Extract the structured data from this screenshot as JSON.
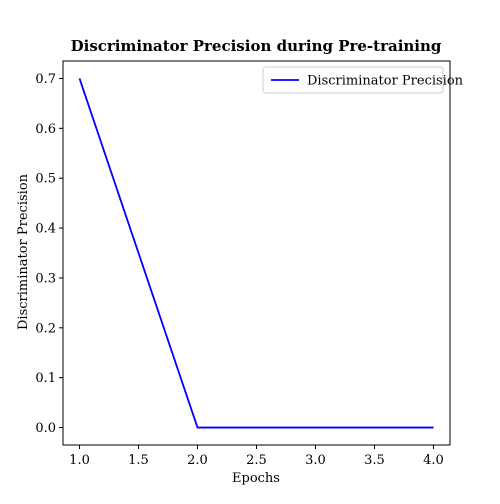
{
  "chart_data": {
    "type": "line",
    "title": "Discriminator Precision during Pre-training",
    "xlabel": "Epochs",
    "ylabel": "Discriminator Precision",
    "x": [
      1.0,
      2.0,
      3.0,
      4.0
    ],
    "series": [
      {
        "name": "Discriminator Precision",
        "values": [
          0.7,
          0.0,
          0.0,
          0.0
        ],
        "color": "#0000ff"
      }
    ],
    "xlim": [
      0.86,
      4.14
    ],
    "ylim": [
      -0.035,
      0.735
    ],
    "x_ticks": [
      1.0,
      1.5,
      2.0,
      2.5,
      3.0,
      3.5,
      4.0
    ],
    "x_tick_labels": [
      "1.0",
      "1.5",
      "2.0",
      "2.5",
      "3.0",
      "3.5",
      "4.0"
    ],
    "y_ticks": [
      0.0,
      0.1,
      0.2,
      0.3,
      0.4,
      0.5,
      0.6,
      0.7
    ],
    "y_tick_labels": [
      "0.0",
      "0.1",
      "0.2",
      "0.3",
      "0.4",
      "0.5",
      "0.6",
      "0.7"
    ],
    "grid": false,
    "legend_position": "top-right"
  }
}
